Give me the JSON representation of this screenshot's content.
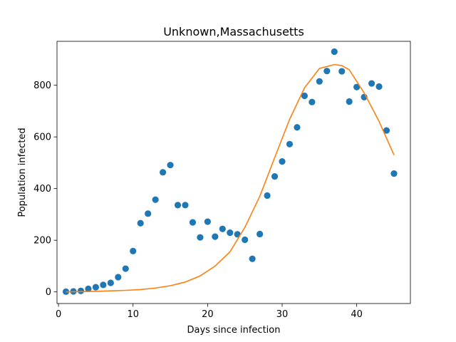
{
  "chart_data": {
    "type": "scatter",
    "title": "Unknown,Massachusetts",
    "xlabel": "Days since infection",
    "ylabel": "Population infected",
    "xlim": [
      -0.2,
      47.2
    ],
    "ylim": [
      -45,
      970
    ],
    "xticks": [
      0,
      10,
      20,
      30,
      40
    ],
    "yticks": [
      0,
      200,
      400,
      600,
      800
    ],
    "grid": false,
    "series": [
      {
        "kind": "scatter",
        "color": "#1f77b4",
        "x": [
          1,
          2,
          3,
          4,
          5,
          6,
          7,
          8,
          9,
          10,
          11,
          12,
          13,
          14,
          15,
          16,
          17,
          18,
          19,
          20,
          21,
          22,
          23,
          24,
          25,
          26,
          27,
          28,
          29,
          30,
          31,
          32,
          33,
          34,
          35,
          36,
          37,
          38,
          39,
          40,
          41,
          42,
          43,
          44,
          45
        ],
        "y": [
          1,
          2,
          4,
          12,
          18,
          27,
          35,
          57,
          90,
          158,
          266,
          303,
          357,
          463,
          491,
          336,
          336,
          269,
          211,
          272,
          214,
          244,
          229,
          223,
          202,
          128,
          224,
          373,
          447,
          505,
          572,
          637,
          759,
          735,
          815,
          855,
          930,
          854,
          737,
          793,
          754,
          807,
          795,
          625,
          458
        ]
      },
      {
        "kind": "line",
        "color": "#ff7f0e",
        "x": [
          1,
          3,
          5,
          7,
          9,
          11,
          13,
          15,
          17,
          19,
          21,
          23,
          25,
          27,
          29,
          31,
          33,
          35,
          37,
          38,
          39,
          41,
          43,
          45
        ],
        "y": [
          0,
          1,
          2,
          4,
          6,
          9,
          15,
          24,
          38,
          62,
          100,
          155,
          250,
          370,
          520,
          668,
          790,
          865,
          880,
          876,
          860,
          770,
          660,
          530
        ]
      }
    ]
  }
}
